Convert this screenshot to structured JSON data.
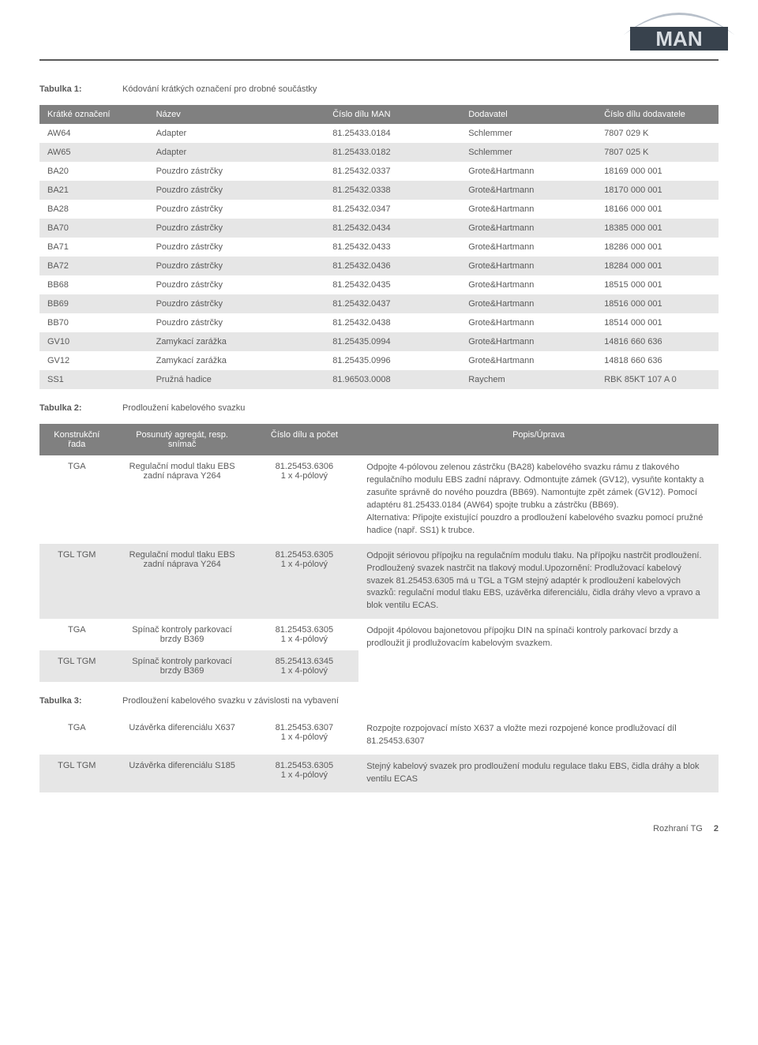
{
  "brand": {
    "name": "MAN",
    "logo_letter_color": "#c0c8d0",
    "logo_arc_color": "#b8c0ca"
  },
  "header_rule_color": "#5a5a5a",
  "table1": {
    "caption_label": "Tabulka 1:",
    "caption_text": "Kódování krátkých označení pro drobné součástky",
    "columns": [
      "Krátké označení",
      "Název",
      "Číslo dílu MAN",
      "Dodavatel",
      "Číslo dílu dodavatele"
    ],
    "header_bg": "#808080",
    "header_fg": "#ffffff",
    "row_alt_bg": "#e6e6e6",
    "rows": [
      [
        "AW64",
        "Adapter",
        "81.25433.0184",
        "Schlemmer",
        "7807 029 K"
      ],
      [
        "AW65",
        "Adapter",
        "81.25433.0182",
        "Schlemmer",
        "7807 025 K"
      ],
      [
        "BA20",
        "Pouzdro zástrčky",
        "81.25432.0337",
        "Grote&Hartmann",
        "18169 000 001"
      ],
      [
        "BA21",
        "Pouzdro zástrčky",
        "81.25432.0338",
        "Grote&Hartmann",
        "18170 000 001"
      ],
      [
        "BA28",
        "Pouzdro zástrčky",
        "81.25432.0347",
        "Grote&Hartmann",
        "18166 000 001"
      ],
      [
        "BA70",
        "Pouzdro zástrčky",
        "81.25432.0434",
        "Grote&Hartmann",
        "18385 000 001"
      ],
      [
        "BA71",
        "Pouzdro zástrčky",
        "81.25432.0433",
        "Grote&Hartmann",
        "18286 000 001"
      ],
      [
        "BA72",
        "Pouzdro zástrčky",
        "81.25432.0436",
        "Grote&Hartmann",
        "18284 000 001"
      ],
      [
        "BB68",
        "Pouzdro zástrčky",
        "81.25432.0435",
        "Grote&Hartmann",
        "18515 000 001"
      ],
      [
        "BB69",
        "Pouzdro zástrčky",
        "81.25432.0437",
        "Grote&Hartmann",
        "18516 000 001"
      ],
      [
        "BB70",
        "Pouzdro zástrčky",
        "81.25432.0438",
        "Grote&Hartmann",
        "18514 000 001"
      ],
      [
        "GV10",
        "Zamykací zarážka",
        "81.25435.0994",
        "Grote&Hartmann",
        "14816 660 636"
      ],
      [
        "GV12",
        "Zamykací zarážka",
        "81.25435.0996",
        "Grote&Hartmann",
        "14818 660 636"
      ],
      [
        "SS1",
        "Pružná hadice",
        "81.96503.0008",
        "Raychem",
        "RBK 85KT 107 A 0"
      ]
    ]
  },
  "table2": {
    "caption_label": "Tabulka 2:",
    "caption_text": "Prodloužení kabelového svazku",
    "columns": [
      "Konstrukční řada",
      "Posunutý agregát, resp. snímač",
      "Číslo dílu a počet",
      "Popis/Úprava"
    ],
    "rows": [
      {
        "alt": false,
        "c1": "TGA",
        "c2": "Regulační modul tlaku EBS zadní náprava Y264",
        "c3": "81.25453.6306\n1 x 4-pólový",
        "c4": "Odpojte 4-pólovou zelenou zástrčku (BA28) kabelového svazku rámu z tlakového regulačního modulu EBS zadní nápravy. Odmontujte zámek (GV12), vysuňte kontakty a zasuňte správně do nového pouzdra (BB69). Namontujte zpět zámek (GV12). Pomocí adaptéru 81.25433.0184 (AW64) spojte trubku a zástrčku (BB69).\nAlternativa: Připojte existující pouzdro a prodloužení kabelového svazku pomocí pružné hadice (např. SS1) k trubce."
      },
      {
        "alt": true,
        "c1": "TGL TGM",
        "c2": "Regulační modul tlaku EBS zadní náprava Y264",
        "c3": "81.25453.6305\n1 x 4-pólový",
        "c4": "Odpojit sériovou přípojku na regulačním modulu tlaku. Na přípojku nastrčit prodloužení. Prodloužený svazek nastrčit na tlakový modul.Upozornění: Prodlužovací kabelový svazek 81.25453.6305 má u TGL a TGM stejný adaptér k prodloužení kabelových svazků: regulační modul tlaku EBS, uzávěrka diferenciálu, čidla dráhy vlevo a vpravo a blok ventilu ECAS."
      },
      {
        "alt": false,
        "rowspan4": 2,
        "c1": "TGA",
        "c2": "Spínač kontroly parkovací brzdy B369",
        "c3": "81.25453.6305\n1 x 4-pólový",
        "c4": "Odpojit 4pólovou bajonetovou přípojku DIN na spínači kontroly parkovací brzdy a prodloužit ji prodlužovacím kabelovým svazkem."
      },
      {
        "alt": true,
        "c1": "TGL TGM",
        "c2": "Spínač kontroly parkovací brzdy B369",
        "c3": "85.25413.6345\n1 x 4-pólový"
      }
    ]
  },
  "table3": {
    "caption_label": "Tabulka 3:",
    "caption_text": "Prodloužení kabelového svazku v závislosti na vybavení",
    "rows": [
      {
        "alt": false,
        "c1": "TGA",
        "c2": "Uzávěrka diferenciálu X637",
        "c3": "81.25453.6307\n1 x 4-pólový",
        "c4": "Rozpojte rozpojovací místo X637 a vložte mezi rozpojené konce prodlužovací díl 81.25453.6307"
      },
      {
        "alt": true,
        "c1": "TGL TGM",
        "c2": "Uzávěrka diferenciálu S185",
        "c3": "81.25453.6305\n1 x 4-pólový",
        "c4": "Stejný kabelový svazek pro prodloužení modulu regulace tlaku EBS, čidla dráhy a blok ventilu ECAS"
      }
    ]
  },
  "footer": {
    "section": "Rozhraní TG",
    "page": "2"
  }
}
